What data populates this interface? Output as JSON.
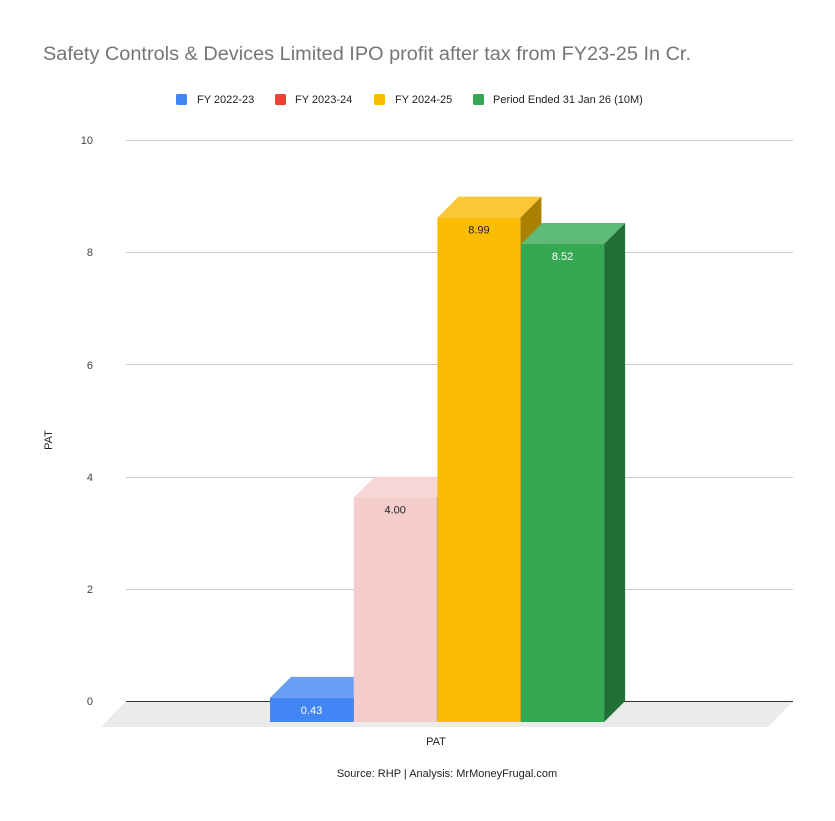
{
  "chart_data": {
    "type": "bar",
    "style": "3d-column",
    "title": "Safety Controls & Devices Limited IPO profit after tax from FY23-25 In Cr.",
    "categories": [
      "PAT"
    ],
    "series": [
      {
        "name": "FY 2022-23",
        "values": [
          0.43
        ],
        "label": "0.43",
        "color": "#4285f4",
        "faces": {
          "front": "#4285f4",
          "top": "#6a9ef6",
          "side": "#2f62b8"
        },
        "label_color": "#ffffff"
      },
      {
        "name": "FY 2023-24",
        "values": [
          4.0
        ],
        "label": "4.00",
        "color": "#ea4335",
        "faces": {
          "front": "#f4cccc",
          "top": "#f6d6d6",
          "side": "#a89494"
        },
        "label_color": "#222222"
      },
      {
        "name": "FY 2024-25",
        "values": [
          8.99
        ],
        "label": "8.99",
        "color": "#fbbc04",
        "faces": {
          "front": "#fbbc04",
          "top": "#fbc734",
          "side": "#ab8000"
        },
        "label_color": "#222222"
      },
      {
        "name": "Period Ended 31 Jan 26 (10M)",
        "values": [
          8.52
        ],
        "label": "8.52",
        "color": "#34a853",
        "faces": {
          "front": "#34a853",
          "top": "#5dbb75",
          "side": "#226e37"
        },
        "label_color": "#ffffff"
      }
    ],
    "xlabel": "PAT",
    "ylabel": "PAT",
    "ylim": [
      0,
      10
    ],
    "yticks": [
      "0",
      "2",
      "4",
      "6",
      "8",
      "10"
    ],
    "grid": true,
    "legend_position": "top",
    "source": "Source: RHP | Analysis: MrMoneyFrugal.com"
  }
}
